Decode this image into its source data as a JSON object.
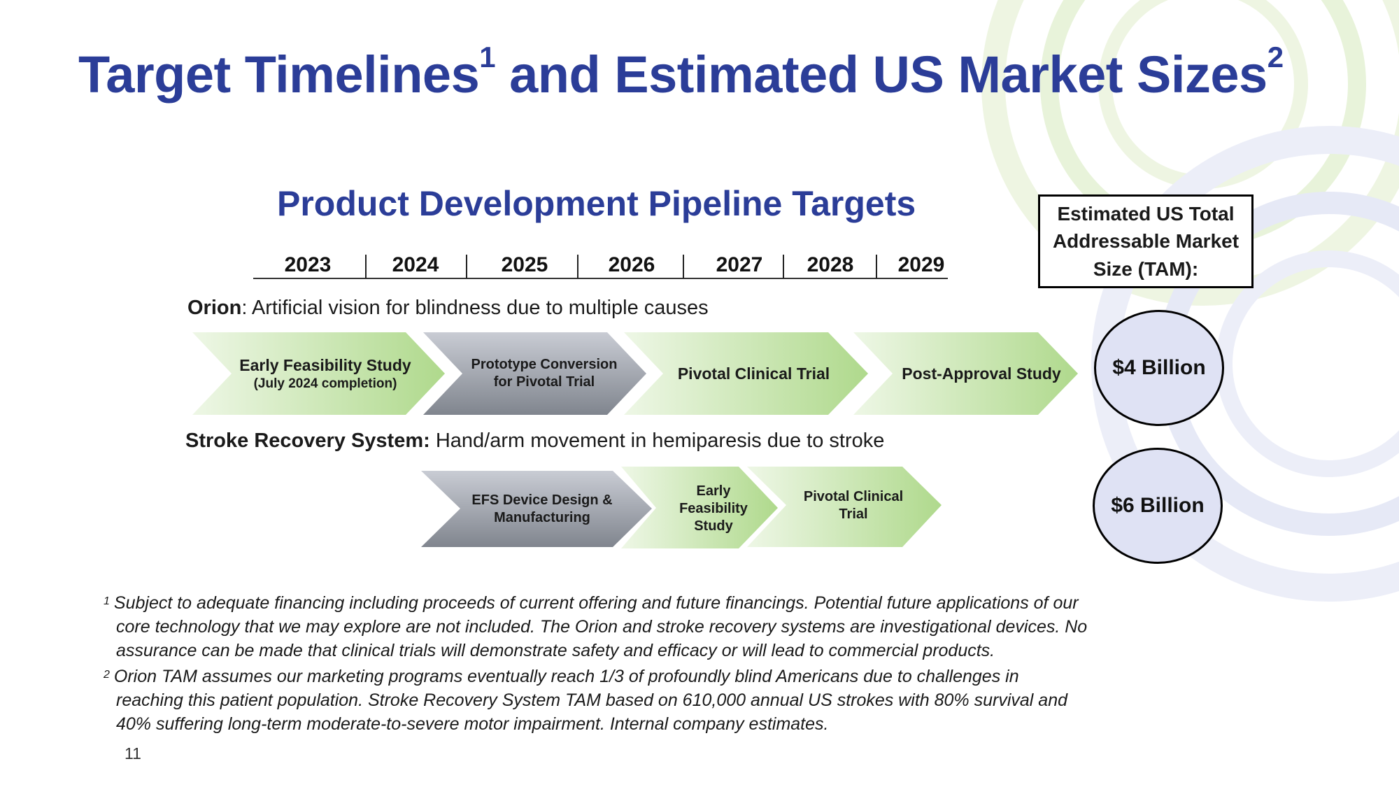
{
  "title": {
    "text": "Target Timelines",
    "sup1": "1",
    "mid": " and Estimated US Market Sizes",
    "sup2": "2"
  },
  "subtitle": "Product Development Pipeline Targets",
  "years": [
    "2023",
    "2024",
    "2025",
    "2026",
    "2027",
    "2028",
    "2029"
  ],
  "orion": {
    "name": "Orion",
    "desc": ": Artificial vision for blindness due to multiple causes",
    "stages": [
      {
        "line1": "Early Feasibility Study",
        "line2": "(July 2024 completion)"
      },
      {
        "line1": "Prototype Conversion",
        "line2": "for Pivotal Trial"
      },
      {
        "line1": "Pivotal Clinical Trial",
        "line2": ""
      },
      {
        "line1": "Post-Approval Study",
        "line2": ""
      }
    ],
    "tam": "$4 Billion"
  },
  "stroke": {
    "name": "Stroke Recovery System:",
    "desc": " Hand/arm movement in hemiparesis due to stroke",
    "stages": [
      {
        "line1": "EFS Device Design &",
        "line2": "Manufacturing"
      },
      {
        "line1": "Early",
        "line2": "Feasibility",
        "line3": "Study"
      },
      {
        "line1": "Pivotal Clinical",
        "line2": "Trial"
      }
    ],
    "tam": "$6 Billion"
  },
  "tam_header": {
    "line1": "Estimated US Total",
    "line2": "Addressable Market",
    "line3": "Size (TAM):"
  },
  "footnotes": [
    {
      "num": "1",
      "lines": [
        "Subject to adequate financing including proceeds of current offering and future financings. Potential future applications of our",
        "core technology that we may explore are not included. The Orion and stroke recovery systems are investigational devices. No",
        "assurance can be made that clinical trials will demonstrate safety and efficacy or will lead to commercial products."
      ]
    },
    {
      "num": "2",
      "lines": [
        "Orion TAM assumes our marketing programs eventually reach 1/3 of profoundly blind Americans due to challenges in",
        "reaching this patient population. Stroke Recovery System TAM based on 610,000 annual US strokes with 80% survival and",
        "40% suffering long-term moderate-to-severe motor impairment. Internal company estimates."
      ]
    }
  ],
  "page_number": "11",
  "colors": {
    "title": "#2b3d98",
    "green_stage": "#b5dc96",
    "gray_stage": "#8f949c",
    "tam_circle": "#dfe2f4"
  }
}
